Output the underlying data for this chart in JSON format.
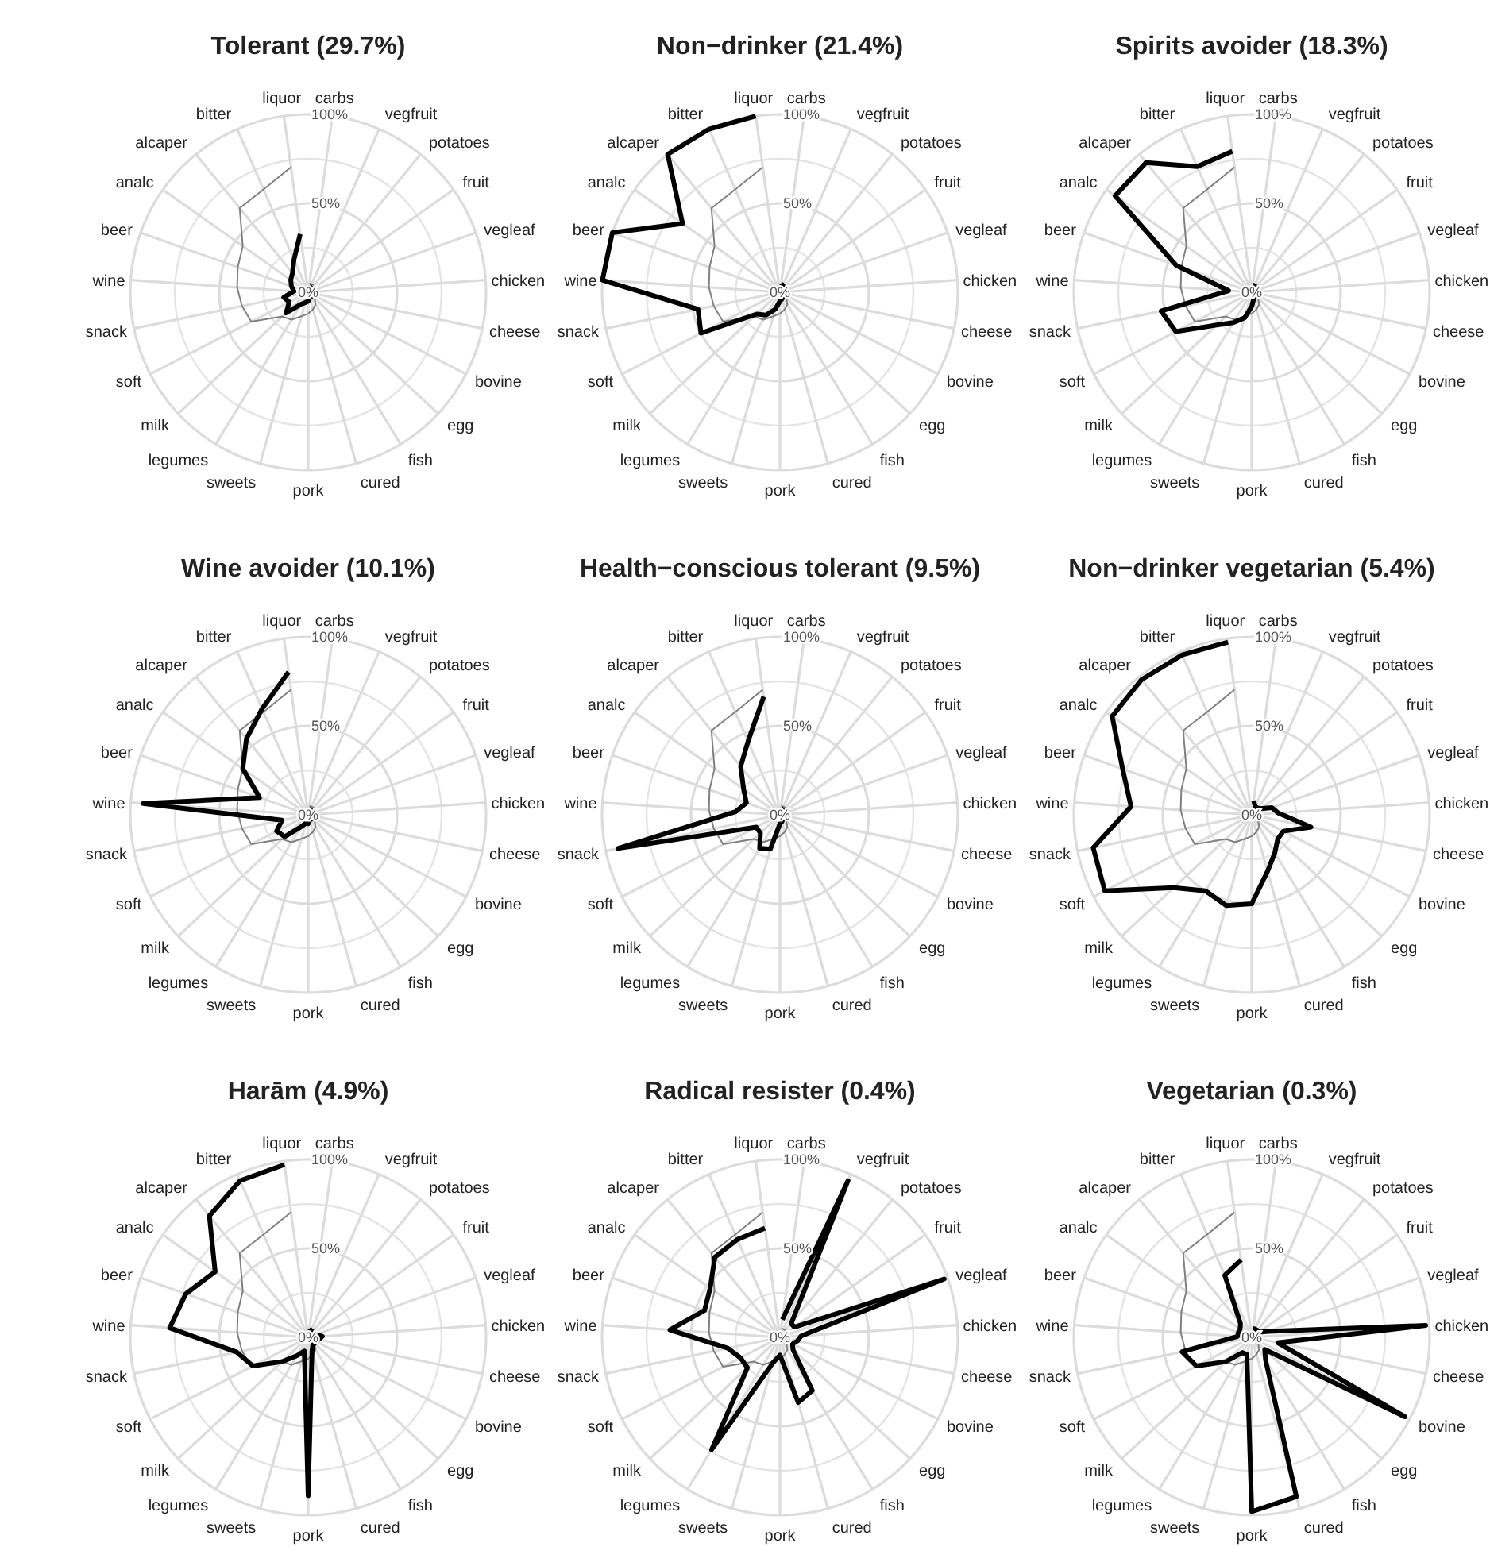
{
  "chart_data": [
    {
      "type": "radar",
      "title": "Tolerant (29.7%)",
      "categories": [
        "carbs",
        "vegfruit",
        "potatoes",
        "fruit",
        "vegleaf",
        "chicken",
        "cheese",
        "bovine",
        "egg",
        "fish",
        "cured",
        "pork",
        "sweets",
        "legumes",
        "milk",
        "soft",
        "snack",
        "wine",
        "beer",
        "analc",
        "alcaper",
        "bitter",
        "liquor"
      ],
      "ylim": [
        0,
        100
      ],
      "yticks": [
        {
          "value": 0,
          "label": "0%"
        },
        {
          "value": 50,
          "label": "50%"
        },
        {
          "value": 100,
          "label": "100%"
        }
      ],
      "grid": true,
      "series": [
        {
          "color": "#808080",
          "values": [
            5,
            5,
            5,
            5,
            5,
            5,
            5,
            5,
            5,
            8,
            10,
            12,
            14,
            18,
            20,
            36,
            38,
            40,
            42,
            45,
            61,
            63,
            71
          ]
        },
        {
          "color": "#000000",
          "values": [
            4,
            3,
            3,
            3,
            3,
            4,
            3,
            3,
            3,
            3,
            3,
            5,
            6,
            8,
            17,
            12,
            14,
            8,
            10,
            12,
            14,
            20,
            33
          ]
        }
      ]
    },
    {
      "type": "radar",
      "title": "Non−drinker (21.4%)",
      "categories": [
        "carbs",
        "vegfruit",
        "potatoes",
        "fruit",
        "vegleaf",
        "chicken",
        "cheese",
        "bovine",
        "egg",
        "fish",
        "cured",
        "pork",
        "sweets",
        "legumes",
        "milk",
        "soft",
        "snack",
        "wine",
        "beer",
        "analc",
        "alcaper",
        "bitter",
        "liquor"
      ],
      "ylim": [
        0,
        100
      ],
      "yticks": [
        {
          "value": 0,
          "label": "0%"
        },
        {
          "value": 50,
          "label": "50%"
        },
        {
          "value": 100,
          "label": "100%"
        }
      ],
      "grid": true,
      "series": [
        {
          "color": "#808080",
          "values": [
            5,
            5,
            5,
            5,
            5,
            5,
            5,
            5,
            5,
            8,
            10,
            12,
            14,
            18,
            20,
            36,
            38,
            40,
            42,
            45,
            61,
            63,
            71
          ]
        },
        {
          "color": "#000000",
          "values": [
            5,
            4,
            3,
            3,
            3,
            3,
            3,
            3,
            3,
            3,
            4,
            5,
            10,
            15,
            18,
            50,
            47,
            100,
            100,
            67,
            100,
            100,
            100
          ]
        }
      ]
    },
    {
      "type": "radar",
      "title": "Spirits avoider (18.3%)",
      "categories": [
        "carbs",
        "vegfruit",
        "potatoes",
        "fruit",
        "vegleaf",
        "chicken",
        "cheese",
        "bovine",
        "egg",
        "fish",
        "cured",
        "pork",
        "sweets",
        "legumes",
        "milk",
        "soft",
        "snack",
        "wine",
        "beer",
        "analc",
        "alcaper",
        "bitter",
        "liquor"
      ],
      "ylim": [
        0,
        100
      ],
      "yticks": [
        {
          "value": 0,
          "label": "0%"
        },
        {
          "value": 50,
          "label": "50%"
        },
        {
          "value": 100,
          "label": "100%"
        }
      ],
      "grid": true,
      "series": [
        {
          "color": "#808080",
          "values": [
            5,
            5,
            5,
            5,
            5,
            5,
            5,
            5,
            5,
            8,
            10,
            12,
            14,
            18,
            20,
            36,
            38,
            40,
            42,
            45,
            61,
            63,
            71
          ]
        },
        {
          "color": "#000000",
          "values": [
            4,
            4,
            3,
            3,
            3,
            4,
            3,
            3,
            3,
            3,
            4,
            8,
            15,
            20,
            27,
            48,
            52,
            13,
            45,
            94,
            94,
            77,
            80
          ]
        }
      ]
    },
    {
      "type": "radar",
      "title": "Wine avoider (10.1%)",
      "categories": [
        "carbs",
        "vegfruit",
        "potatoes",
        "fruit",
        "vegleaf",
        "chicken",
        "cheese",
        "bovine",
        "egg",
        "fish",
        "cured",
        "pork",
        "sweets",
        "legumes",
        "milk",
        "soft",
        "snack",
        "wine",
        "beer",
        "analc",
        "alcaper",
        "bitter",
        "liquor"
      ],
      "ylim": [
        0,
        100
      ],
      "yticks": [
        {
          "value": 0,
          "label": "0%"
        },
        {
          "value": 50,
          "label": "50%"
        },
        {
          "value": 100,
          "label": "100%"
        }
      ],
      "grid": true,
      "series": [
        {
          "color": "#808080",
          "values": [
            5,
            5,
            5,
            5,
            5,
            5,
            5,
            5,
            5,
            8,
            10,
            12,
            14,
            18,
            20,
            36,
            38,
            40,
            42,
            45,
            61,
            63,
            71
          ]
        },
        {
          "color": "#000000",
          "values": [
            4,
            3,
            3,
            3,
            3,
            4,
            3,
            3,
            3,
            3,
            3,
            5,
            5,
            8,
            18,
            20,
            15,
            93,
            29,
            45,
            55,
            65,
            81
          ]
        }
      ]
    },
    {
      "type": "radar",
      "title": "Health−conscious tolerant (9.5%)",
      "categories": [
        "carbs",
        "vegfruit",
        "potatoes",
        "fruit",
        "vegleaf",
        "chicken",
        "cheese",
        "bovine",
        "egg",
        "fish",
        "cured",
        "pork",
        "sweets",
        "legumes",
        "milk",
        "soft",
        "snack",
        "wine",
        "beer",
        "analc",
        "alcaper",
        "bitter",
        "liquor"
      ],
      "ylim": [
        0,
        100
      ],
      "yticks": [
        {
          "value": 0,
          "label": "0%"
        },
        {
          "value": 50,
          "label": "50%"
        },
        {
          "value": 100,
          "label": "100%"
        }
      ],
      "grid": true,
      "series": [
        {
          "color": "#808080",
          "values": [
            5,
            5,
            5,
            5,
            5,
            5,
            5,
            5,
            5,
            8,
            10,
            12,
            14,
            18,
            20,
            36,
            38,
            40,
            42,
            45,
            61,
            63,
            71
          ]
        },
        {
          "color": "#000000",
          "values": [
            4,
            3,
            3,
            3,
            3,
            4,
            3,
            3,
            3,
            3,
            4,
            5,
            20,
            22,
            15,
            15,
            93,
            25,
            20,
            25,
            35,
            45,
            67
          ]
        }
      ]
    },
    {
      "type": "radar",
      "title": "Non−drinker vegetarian (5.4%)",
      "categories": [
        "carbs",
        "vegfruit",
        "potatoes",
        "fruit",
        "vegleaf",
        "chicken",
        "cheese",
        "bovine",
        "egg",
        "fish",
        "cured",
        "pork",
        "sweets",
        "legumes",
        "milk",
        "soft",
        "snack",
        "wine",
        "beer",
        "analc",
        "alcaper",
        "bitter",
        "liquor"
      ],
      "ylim": [
        0,
        100
      ],
      "yticks": [
        {
          "value": 0,
          "label": "0%"
        },
        {
          "value": 50,
          "label": "50%"
        },
        {
          "value": 100,
          "label": "100%"
        }
      ],
      "grid": true,
      "series": [
        {
          "color": "#808080",
          "values": [
            5,
            5,
            5,
            5,
            5,
            5,
            5,
            5,
            5,
            8,
            10,
            12,
            14,
            18,
            20,
            36,
            38,
            40,
            42,
            45,
            61,
            63,
            71
          ]
        },
        {
          "color": "#000000",
          "values": [
            8,
            5,
            5,
            6,
            12,
            15,
            34,
            20,
            20,
            25,
            33,
            50,
            53,
            50,
            60,
            93,
            91,
            68,
            77,
            96,
            98,
            98,
            98
          ]
        }
      ]
    },
    {
      "type": "radar",
      "title": "Harām (4.9%)",
      "categories": [
        "carbs",
        "vegfruit",
        "potatoes",
        "fruit",
        "vegleaf",
        "chicken",
        "cheese",
        "bovine",
        "egg",
        "fish",
        "cured",
        "pork",
        "sweets",
        "legumes",
        "milk",
        "soft",
        "snack",
        "wine",
        "beer",
        "analc",
        "alcaper",
        "bitter",
        "liquor"
      ],
      "ylim": [
        0,
        100
      ],
      "yticks": [
        {
          "value": 0,
          "label": "0%"
        },
        {
          "value": 50,
          "label": "50%"
        },
        {
          "value": 100,
          "label": "100%"
        }
      ],
      "grid": true,
      "series": [
        {
          "color": "#808080",
          "values": [
            5,
            5,
            5,
            5,
            5,
            5,
            5,
            5,
            5,
            8,
            10,
            12,
            14,
            18,
            20,
            36,
            38,
            40,
            42,
            45,
            61,
            63,
            71
          ]
        },
        {
          "color": "#000000",
          "values": [
            5,
            4,
            4,
            4,
            5,
            8,
            6,
            5,
            5,
            5,
            8,
            89,
            8,
            12,
            20,
            35,
            41,
            78,
            73,
            64,
            88,
            96,
            98
          ]
        }
      ]
    },
    {
      "type": "radar",
      "title": "Radical resister (0.4%)",
      "categories": [
        "carbs",
        "vegfruit",
        "potatoes",
        "fruit",
        "vegleaf",
        "chicken",
        "cheese",
        "bovine",
        "egg",
        "fish",
        "cured",
        "pork",
        "sweets",
        "legumes",
        "milk",
        "soft",
        "snack",
        "wine",
        "beer",
        "analc",
        "alcaper",
        "bitter",
        "liquor"
      ],
      "ylim": [
        0,
        100
      ],
      "yticks": [
        {
          "value": 0,
          "label": "0%"
        },
        {
          "value": 50,
          "label": "50%"
        },
        {
          "value": 100,
          "label": "100%"
        }
      ],
      "grid": true,
      "series": [
        {
          "color": "#808080",
          "values": [
            5,
            5,
            5,
            5,
            5,
            5,
            5,
            5,
            5,
            8,
            10,
            12,
            14,
            18,
            20,
            36,
            38,
            40,
            42,
            45,
            61,
            63,
            71
          ]
        },
        {
          "color": "#000000",
          "values": [
            10,
            96,
            10,
            10,
            98,
            12,
            10,
            8,
            10,
            35,
            38,
            10,
            15,
            74,
            25,
            25,
            30,
            62,
            45,
            48,
            58,
            60,
            62
          ]
        }
      ]
    },
    {
      "type": "radar",
      "title": "Vegetarian (0.3%)",
      "categories": [
        "carbs",
        "vegfruit",
        "potatoes",
        "fruit",
        "vegleaf",
        "chicken",
        "cheese",
        "bovine",
        "egg",
        "fish",
        "cured",
        "pork",
        "sweets",
        "legumes",
        "milk",
        "soft",
        "snack",
        "wine",
        "beer",
        "analc",
        "alcaper",
        "bitter",
        "liquor"
      ],
      "ylim": [
        0,
        100
      ],
      "yticks": [
        {
          "value": 0,
          "label": "0%"
        },
        {
          "value": 50,
          "label": "50%"
        },
        {
          "value": 100,
          "label": "100%"
        }
      ],
      "grid": true,
      "series": [
        {
          "color": "#808080",
          "values": [
            5,
            5,
            5,
            5,
            5,
            5,
            5,
            5,
            5,
            8,
            10,
            12,
            14,
            18,
            20,
            36,
            38,
            40,
            42,
            45,
            61,
            63,
            71
          ]
        },
        {
          "color": "#000000",
          "values": [
            5,
            5,
            5,
            5,
            10,
            98,
            15,
            97,
            10,
            15,
            93,
            98,
            10,
            10,
            20,
            35,
            40,
            8,
            8,
            8,
            10,
            38,
            44
          ]
        }
      ]
    }
  ]
}
